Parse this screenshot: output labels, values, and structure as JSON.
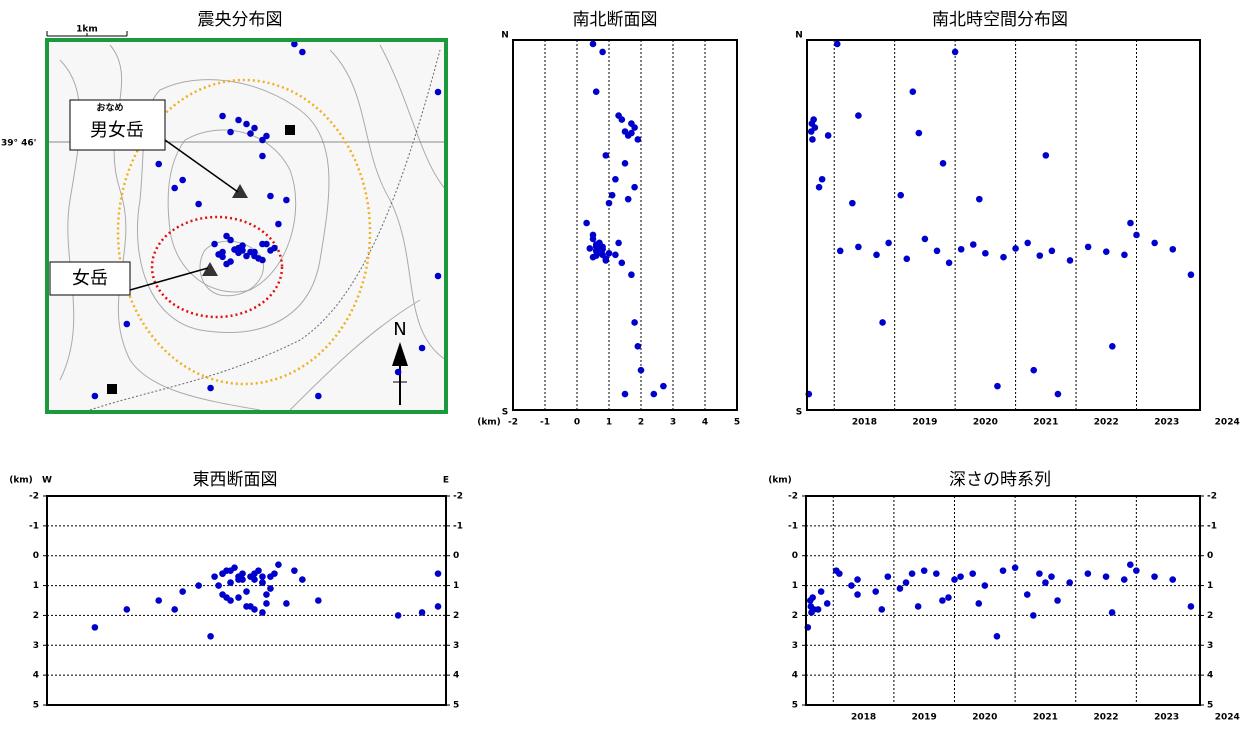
{
  "chart_data": [
    {
      "type": "map",
      "title": "震央分布図",
      "annotations": {
        "summit_1": "男女岳",
        "ruby": "おなめ",
        "summit_2": "女岳",
        "scale": "1km",
        "latitude": "39° 46'",
        "north": "N"
      },
      "xlim": [
        -2.5,
        2.5
      ],
      "ylim": [
        -2.3,
        2.35
      ],
      "frame_color": "#1a9a3c",
      "x": [
        -0.3,
        -0.1,
        0.0,
        -0.4,
        0.2,
        -0.2,
        0.1,
        -0.25,
        0.3,
        -0.05,
        -0.35,
        0.15,
        -0.15,
        0.25,
        -0.3,
        0.05,
        -0.2,
        0.35,
        -0.1,
        0.1,
        -0.25,
        0.2,
        -0.05,
        -0.2,
        0.0,
        0.2,
        -0.1,
        0.1,
        0.25,
        -0.3,
        0.05,
        -0.9,
        -0.6,
        0.3,
        -1.1,
        0.5,
        0.2,
        0.4,
        -1.9,
        0.6,
        -1.5,
        2.4,
        -0.45,
        1.9,
        0.9,
        2.2,
        2.4,
        0.7,
        -0.8
      ],
      "series": [
        {
          "color": "#0000cc",
          "values": [
            -0.3,
            -0.25,
            -0.35,
            -0.2,
            -0.4,
            -0.15,
            -0.3,
            -0.45,
            -0.28,
            -0.22,
            -0.33,
            -0.38,
            -0.27,
            -0.2,
            -0.36,
            -0.3,
            -0.42,
            -0.25,
            -0.31,
            -0.35,
            -0.1,
            -0.2,
            -0.28,
            1.2,
            1.3,
            1.1,
            1.35,
            1.25,
            1.15,
            1.4,
            1.18,
            0.5,
            0.3,
            0.4,
            0.8,
            0.35,
            0.9,
            0.05,
            -2.1,
            2.3,
            -1.2,
            1.7,
            -2.0,
            -1.8,
            -2.1,
            -1.5,
            -0.6,
            2.2,
            0.6
          ]
        }
      ]
    },
    {
      "type": "scatter",
      "title": "南北断面図",
      "x_label": "(km)",
      "y_top": "N",
      "y_bottom": "S",
      "xlim": [
        -2,
        5
      ],
      "xticks": [
        -2,
        -1,
        0,
        1,
        2,
        3,
        4,
        5
      ],
      "x_grid": true,
      "ylim": [
        -2.3,
        2.35
      ],
      "x": [
        0.6,
        0.8,
        1.2,
        0.7,
        0.9,
        0.5,
        0.6,
        1.4,
        0.7,
        0.6,
        1.0,
        0.5,
        0.4,
        1.3,
        0.6,
        0.7,
        0.9,
        0.6,
        0.7,
        0.8,
        0.5,
        0.7,
        0.8,
        1.5,
        1.7,
        1.9,
        1.4,
        1.8,
        1.6,
        1.3,
        1.7,
        1.8,
        1.0,
        1.1,
        1.5,
        1.6,
        0.9,
        0.3,
        2.4,
        0.5,
        1.8,
        0.6,
        2.7,
        2.0,
        1.5,
        1.9,
        1.7,
        0.8,
        1.2
      ],
      "series": [
        {
          "color": "#0000cc",
          "values": [
            -0.3,
            -0.25,
            -0.35,
            -0.2,
            -0.4,
            -0.15,
            -0.3,
            -0.45,
            -0.28,
            -0.22,
            -0.33,
            -0.38,
            -0.27,
            -0.2,
            -0.36,
            -0.3,
            -0.42,
            -0.25,
            -0.31,
            -0.35,
            -0.1,
            -0.2,
            -0.28,
            1.2,
            1.3,
            1.1,
            1.35,
            1.25,
            1.15,
            1.4,
            1.18,
            0.5,
            0.3,
            0.4,
            0.8,
            0.35,
            0.9,
            0.05,
            -2.1,
            2.3,
            -1.2,
            1.7,
            -2.0,
            -1.8,
            -2.1,
            -1.5,
            -0.6,
            2.2,
            0.6
          ]
        }
      ]
    },
    {
      "type": "scatter",
      "title": "南北時空間分布図",
      "y_top": "N",
      "y_bottom": "S",
      "xlim": [
        2017.55,
        2024.05
      ],
      "xticks": [
        {
          "value": 2018.5,
          "label": "2018"
        },
        {
          "value": 2019.5,
          "label": "2019"
        },
        {
          "value": 2020.5,
          "label": "2020"
        },
        {
          "value": 2021.5,
          "label": "2021"
        },
        {
          "value": 2022.5,
          "label": "2022"
        },
        {
          "value": 2023.5,
          "label": "2023"
        },
        {
          "value": 2024.5,
          "label": "2024"
        }
      ],
      "xgrid": [
        2018,
        2019,
        2020,
        2021,
        2022,
        2023
      ],
      "ylim": [
        -2.3,
        2.35
      ],
      "x": [
        2018.1,
        2018.4,
        2018.7,
        2018.9,
        2019.2,
        2019.5,
        2019.7,
        2019.9,
        2020.1,
        2020.3,
        2020.5,
        2020.8,
        2021.0,
        2021.2,
        2021.4,
        2021.6,
        2021.9,
        2022.2,
        2022.5,
        2022.8,
        2023.0,
        2023.3,
        2023.6,
        2017.62,
        2017.63,
        2017.64,
        2017.66,
        2017.68,
        2017.9,
        2018.4,
        2019.4,
        2017.75,
        2018.3,
        2019.1,
        2019.8,
        2020.4,
        2021.5,
        2022.9,
        2017.58,
        2018.05,
        2018.8,
        2019.3,
        2020.7,
        2021.3,
        2021.7,
        2022.6,
        2023.9,
        2020.0,
        2017.8
      ],
      "series": [
        {
          "color": "#0000cc",
          "values": [
            -0.3,
            -0.25,
            -0.35,
            -0.2,
            -0.4,
            -0.15,
            -0.3,
            -0.45,
            -0.28,
            -0.22,
            -0.33,
            -0.38,
            -0.27,
            -0.2,
            -0.36,
            -0.3,
            -0.42,
            -0.25,
            -0.31,
            -0.35,
            -0.1,
            -0.2,
            -0.28,
            1.2,
            1.3,
            1.1,
            1.35,
            1.25,
            1.15,
            1.4,
            1.18,
            0.5,
            0.3,
            0.4,
            0.8,
            0.35,
            0.9,
            0.05,
            -2.1,
            2.3,
            -1.2,
            1.7,
            -2.0,
            -1.8,
            -2.1,
            -1.5,
            -0.6,
            2.2,
            0.6
          ]
        }
      ]
    },
    {
      "type": "scatter",
      "title": "東西断面図",
      "y_label": "(km)",
      "left_label": "W",
      "right_label": "E",
      "xlim": [
        -2.5,
        2.5
      ],
      "ylim": [
        -2,
        5
      ],
      "y_inverted": true,
      "yticks": [
        -2,
        -1,
        0,
        1,
        2,
        3,
        4,
        5
      ],
      "grid": true,
      "y_right_labels": true,
      "x": [
        -0.3,
        -0.1,
        0.0,
        -0.4,
        0.2,
        -0.2,
        0.1,
        -0.25,
        0.3,
        -0.05,
        -0.35,
        0.15,
        -0.15,
        0.25,
        -0.3,
        0.05,
        -0.2,
        0.35,
        -0.1,
        0.1,
        -0.25,
        0.2,
        -0.05,
        -0.2,
        0.0,
        0.2,
        -0.1,
        0.1,
        0.25,
        -0.3,
        0.05,
        -0.9,
        -0.6,
        0.3,
        -1.1,
        0.5,
        0.2,
        0.4,
        -1.9,
        0.6,
        -1.5,
        2.4,
        -0.45,
        1.9,
        0.9,
        2.2,
        2.4,
        0.7,
        -0.8
      ],
      "series": [
        {
          "color": "#0000cc",
          "values": [
            0.6,
            0.8,
            1.2,
            0.7,
            0.9,
            0.5,
            0.6,
            1.4,
            0.7,
            0.6,
            1.0,
            0.5,
            0.4,
            1.3,
            0.6,
            0.7,
            0.9,
            0.6,
            0.7,
            0.8,
            0.5,
            0.7,
            0.8,
            1.5,
            1.7,
            1.9,
            1.4,
            1.8,
            1.6,
            1.3,
            1.7,
            1.8,
            1.0,
            1.1,
            1.5,
            1.6,
            0.9,
            0.3,
            2.4,
            0.5,
            1.8,
            0.6,
            2.7,
            2.0,
            1.5,
            1.9,
            1.7,
            0.8,
            1.2
          ]
        }
      ]
    },
    {
      "type": "scatter",
      "title": "深さの時系列",
      "y_label": "(km)",
      "xlim": [
        2017.55,
        2024.05
      ],
      "xticks": [
        {
          "value": 2018.5,
          "label": "2018"
        },
        {
          "value": 2019.5,
          "label": "2019"
        },
        {
          "value": 2020.5,
          "label": "2020"
        },
        {
          "value": 2021.5,
          "label": "2021"
        },
        {
          "value": 2022.5,
          "label": "2022"
        },
        {
          "value": 2023.5,
          "label": "2023"
        },
        {
          "value": 2024.5,
          "label": "2024"
        }
      ],
      "xgrid": [
        2018,
        2019,
        2020,
        2021,
        2022,
        2023
      ],
      "ylim": [
        -2,
        5
      ],
      "y_inverted": true,
      "yticks": [
        -2,
        -1,
        0,
        1,
        2,
        3,
        4,
        5
      ],
      "grid": true,
      "y_right_labels": true,
      "x": [
        2018.1,
        2018.4,
        2018.7,
        2018.9,
        2019.2,
        2019.5,
        2019.7,
        2019.9,
        2020.1,
        2020.3,
        2020.5,
        2020.8,
        2021.0,
        2021.2,
        2021.4,
        2021.6,
        2021.9,
        2022.2,
        2022.5,
        2022.8,
        2023.0,
        2023.3,
        2023.6,
        2017.62,
        2017.63,
        2017.64,
        2017.66,
        2017.68,
        2017.9,
        2018.4,
        2019.4,
        2017.75,
        2018.3,
        2019.1,
        2019.8,
        2020.4,
        2021.5,
        2022.9,
        2017.58,
        2018.05,
        2018.8,
        2019.3,
        2020.7,
        2021.3,
        2021.7,
        2022.6,
        2023.9,
        2020.0,
        2017.8
      ],
      "series": [
        {
          "color": "#0000cc",
          "values": [
            0.6,
            0.8,
            1.2,
            0.7,
            0.9,
            0.5,
            0.6,
            1.4,
            0.7,
            0.6,
            1.0,
            0.5,
            0.4,
            1.3,
            0.6,
            0.7,
            0.9,
            0.6,
            0.7,
            0.8,
            0.5,
            0.7,
            0.8,
            1.5,
            1.7,
            1.9,
            1.4,
            1.8,
            1.6,
            1.3,
            1.7,
            1.8,
            1.0,
            1.1,
            1.5,
            1.6,
            0.9,
            0.3,
            2.4,
            0.5,
            1.8,
            0.6,
            2.7,
            2.0,
            1.5,
            1.9,
            1.7,
            0.8,
            1.2
          ]
        }
      ]
    }
  ]
}
